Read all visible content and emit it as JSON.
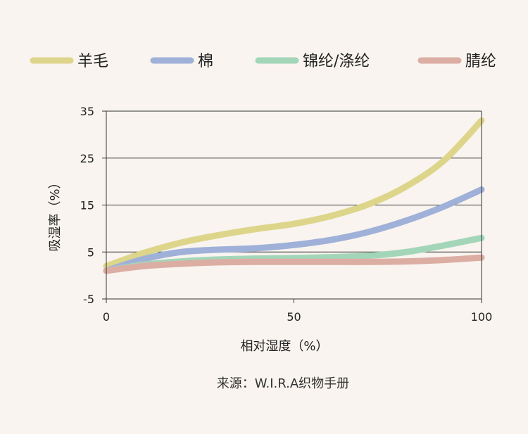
{
  "chart_data": {
    "type": "line",
    "title": "",
    "xlabel": "相对湿度（%）",
    "ylabel": "吸湿率（%）",
    "xlim": [
      0,
      100
    ],
    "ylim": [
      -5,
      35
    ],
    "x_ticks": [
      0,
      50,
      100
    ],
    "y_ticks": [
      -5,
      5,
      15,
      25,
      35
    ],
    "x_tick_labels": [
      "0",
      "50",
      "100"
    ],
    "y_tick_labels": [
      "-5",
      "5",
      "15",
      "25",
      "35"
    ],
    "grid": "horizontal",
    "legend": "top",
    "series": [
      {
        "name": "羊毛",
        "color": "#ddd58a",
        "x": [
          0,
          10,
          20,
          30,
          40,
          50,
          60,
          70,
          80,
          90,
          100
        ],
        "y": [
          2,
          4.8,
          7,
          8.6,
          9.9,
          11,
          12.7,
          15.2,
          19,
          24.5,
          33
        ]
      },
      {
        "name": "棉",
        "color": "#9fb1d8",
        "x": [
          0,
          10,
          20,
          30,
          40,
          50,
          60,
          70,
          80,
          90,
          100
        ],
        "y": [
          1,
          3.5,
          5,
          5.5,
          5.8,
          6.5,
          7.6,
          9.3,
          11.7,
          14.7,
          18.3
        ]
      },
      {
        "name": "锦纶/涤纶",
        "color": "#a3d6b9",
        "x": [
          0,
          10,
          20,
          30,
          40,
          50,
          60,
          70,
          80,
          90,
          100
        ],
        "y": [
          1,
          2.3,
          3,
          3.4,
          3.6,
          3.7,
          3.9,
          4.2,
          5,
          6.4,
          8
        ]
      },
      {
        "name": "腈纶",
        "color": "#dcada3",
        "x": [
          0,
          10,
          20,
          30,
          40,
          50,
          60,
          70,
          80,
          90,
          100
        ],
        "y": [
          1,
          2,
          2.5,
          2.8,
          2.9,
          2.9,
          2.9,
          2.9,
          3,
          3.3,
          3.8
        ]
      }
    ]
  },
  "source_text": "来源：W.I.R.A织物手册"
}
